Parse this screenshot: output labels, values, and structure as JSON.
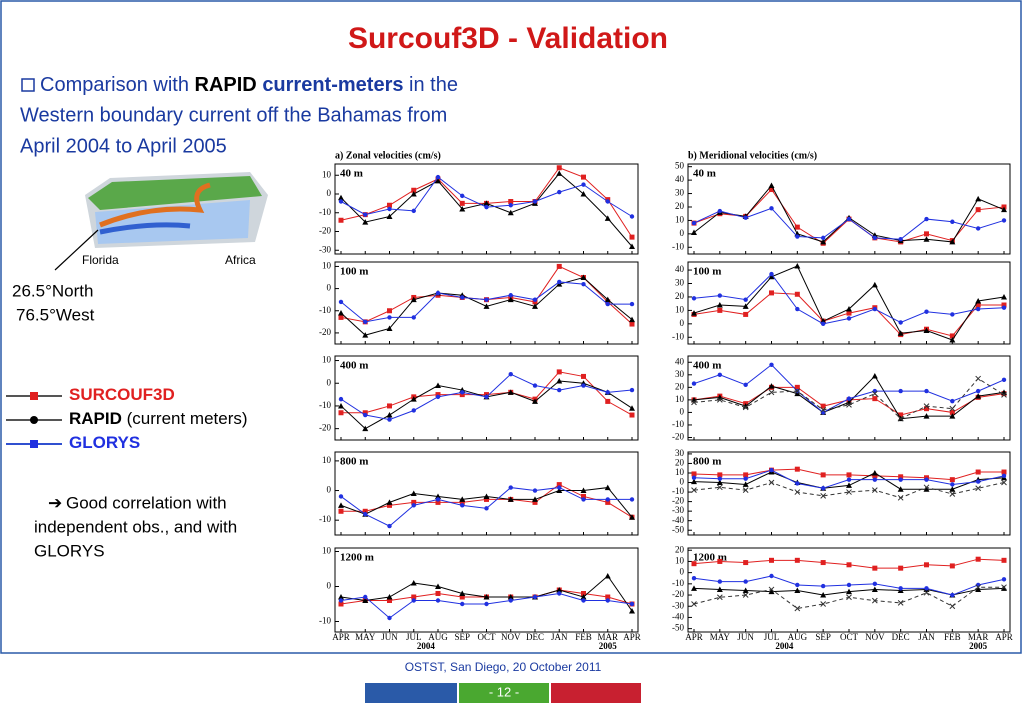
{
  "slide": {
    "title": "Surcouf3D - Validation",
    "intro": {
      "lead": "Comparison with",
      "bold1": "RAPID",
      "bold2": "current-meters",
      "rest": "in the",
      "line2": "Western boundary current off the Bahamas from",
      "line3": "April 2004 to April 2005"
    },
    "map_labels": {
      "left": "Florida",
      "right": "Africa",
      "lat": "26.5°North",
      "lon": "76.5°West"
    },
    "legend": [
      {
        "name": "SURCOUF3D",
        "color": "#e02020"
      },
      {
        "name": "RAPID",
        "detail": "(current meters)",
        "color": "#000000"
      },
      {
        "name": "GLORYS",
        "color": "#2030e0"
      }
    ],
    "comment": [
      "Good correlation with",
      "independent obs., and with",
      "GLORYS"
    ],
    "footer": {
      "venue": "OSTST, San Diego, 20 October 2011",
      "page": "- 12 -"
    }
  },
  "x_axis": {
    "categories": [
      "APR",
      "MAY",
      "JUN",
      "JUL",
      "AUG",
      "SEP",
      "OCT",
      "NOV",
      "DEC",
      "JAN",
      "FEB",
      "MAR",
      "APR"
    ],
    "years": [
      "2004",
      "2005"
    ]
  },
  "chart_data": [
    {
      "type": "line",
      "title": "a)  Zonal  velocities  (cm/s)",
      "label": "40 m",
      "ylim": [
        -32,
        16
      ],
      "yticks": [
        10,
        0,
        -10,
        -20,
        -30
      ],
      "series": [
        {
          "color": "#e02020",
          "values": [
            -14,
            -11,
            -6,
            2,
            8,
            -5,
            -5,
            -4,
            -4,
            14,
            9,
            -3,
            -23
          ]
        },
        {
          "color": "#000000",
          "values": [
            -2,
            -15,
            -12,
            0,
            7,
            -8,
            -5,
            -10,
            -5,
            11,
            0,
            -13,
            -28
          ]
        },
        {
          "color": "#2030e0",
          "values": [
            -4,
            -11,
            -8,
            -9,
            9,
            -1,
            -7,
            -6,
            -4,
            1,
            5,
            -4,
            -12
          ]
        }
      ]
    },
    {
      "type": "line",
      "label": "100 m",
      "ylim": [
        -25,
        12
      ],
      "yticks": [
        10,
        0,
        -10,
        -20
      ],
      "series": [
        {
          "color": "#e02020",
          "values": [
            -13,
            -15,
            -10,
            -4,
            -3,
            -4,
            -5,
            -4,
            -6,
            10,
            5,
            -6,
            -16
          ]
        },
        {
          "color": "#000000",
          "values": [
            -11,
            -21,
            -18,
            -5,
            -2,
            -3,
            -8,
            -5,
            -8,
            2,
            5,
            -5,
            -14
          ]
        },
        {
          "color": "#2030e0",
          "values": [
            -6,
            -15,
            -13,
            -13,
            -2,
            -4,
            -5,
            -3,
            -5,
            3,
            2,
            -7,
            -7
          ]
        }
      ]
    },
    {
      "type": "line",
      "label": "400 m",
      "ylim": [
        -25,
        12
      ],
      "yticks": [
        10,
        0,
        -10,
        -20
      ],
      "series": [
        {
          "color": "#e02020",
          "values": [
            -13,
            -13,
            -10,
            -6,
            -5,
            -5,
            -5,
            -4,
            -7,
            5,
            3,
            -8,
            -14
          ]
        },
        {
          "color": "#000000",
          "values": [
            -10,
            -20,
            -14,
            -7,
            -1,
            -3,
            -6,
            -4,
            -8,
            1,
            0,
            -4,
            -11
          ]
        },
        {
          "color": "#2030e0",
          "values": [
            -7,
            -14,
            -16,
            -12,
            -6,
            -4,
            -6,
            4,
            -1,
            -3,
            -1,
            -4,
            -3
          ]
        }
      ]
    },
    {
      "type": "line",
      "label": "800 m",
      "ylim": [
        -15,
        13
      ],
      "yticks": [
        10,
        0,
        -10
      ],
      "series": [
        {
          "color": "#e02020",
          "values": [
            -7,
            -7,
            -5,
            -4,
            -4,
            -4,
            -3,
            -3,
            -4,
            2,
            -2,
            -4,
            -9
          ]
        },
        {
          "color": "#000000",
          "values": [
            -5,
            -8,
            -4,
            -1,
            -2,
            -3,
            -2,
            -3,
            -3,
            0,
            0,
            1,
            -9
          ]
        },
        {
          "color": "#2030e0",
          "values": [
            -2,
            -8,
            -12,
            -5,
            -3,
            -5,
            -6,
            1,
            0,
            1,
            -3,
            -3,
            -3
          ]
        }
      ]
    },
    {
      "type": "line",
      "label": "1200 m",
      "ylim": [
        -13,
        11
      ],
      "yticks": [
        10,
        0,
        -10
      ],
      "series": [
        {
          "color": "#e02020",
          "values": [
            -5,
            -4,
            -4,
            -3,
            -2,
            -3,
            -3,
            -3,
            -3,
            -1,
            -2,
            -3,
            -5
          ]
        },
        {
          "color": "#000000",
          "values": [
            -3,
            -4,
            -3,
            1,
            0,
            -2,
            -3,
            -3,
            -3,
            -1,
            -3,
            3,
            -7
          ]
        },
        {
          "color": "#2030e0",
          "values": [
            -4,
            -3,
            -9,
            -4,
            -4,
            -5,
            -5,
            -4,
            -3,
            -2,
            -4,
            -4,
            -5
          ]
        }
      ]
    },
    {
      "type": "line",
      "title": "b)  Meridional  velocities  (cm/s)",
      "label": "40 m",
      "ylim": [
        -15,
        52
      ],
      "yticks": [
        50,
        40,
        30,
        20,
        10,
        0,
        -10
      ],
      "series": [
        {
          "color": "#e02020",
          "values": [
            8,
            15,
            13,
            33,
            5,
            -7,
            11,
            -3,
            -6,
            0,
            -5,
            18,
            20
          ]
        },
        {
          "color": "#000000",
          "values": [
            1,
            16,
            13,
            36,
            0,
            -6,
            12,
            -1,
            -5,
            -4,
            -6,
            26,
            18
          ]
        },
        {
          "color": "#2030e0",
          "values": [
            8,
            17,
            12,
            19,
            -2,
            -3,
            11,
            -3,
            -4,
            11,
            9,
            4,
            10
          ]
        }
      ]
    },
    {
      "type": "line",
      "label": "100 m",
      "ylim": [
        -15,
        46
      ],
      "yticks": [
        40,
        30,
        20,
        10,
        0,
        -10
      ],
      "series": [
        {
          "color": "#e02020",
          "values": [
            7,
            10,
            7,
            23,
            22,
            2,
            8,
            12,
            -8,
            -4,
            -9,
            14,
            14
          ]
        },
        {
          "color": "#000000",
          "values": [
            8,
            14,
            13,
            35,
            43,
            2,
            11,
            29,
            -7,
            -5,
            -12,
            17,
            20
          ]
        },
        {
          "color": "#2030e0",
          "values": [
            19,
            21,
            18,
            37,
            11,
            0,
            4,
            11,
            1,
            9,
            7,
            11,
            12
          ]
        }
      ]
    },
    {
      "type": "line",
      "label": "400 m",
      "ylim": [
        -22,
        45
      ],
      "yticks": [
        40,
        30,
        20,
        10,
        0,
        -10,
        -20
      ],
      "series": [
        {
          "color": "#e02020",
          "values": [
            10,
            13,
            7,
            20,
            20,
            5,
            10,
            11,
            -2,
            3,
            0,
            12,
            15
          ]
        },
        {
          "color": "#000000",
          "values": [
            10,
            12,
            5,
            21,
            15,
            0,
            8,
            29,
            -5,
            -3,
            -3,
            13,
            16
          ]
        },
        {
          "color": "#2030e0",
          "values": [
            23,
            30,
            22,
            38,
            17,
            0,
            11,
            17,
            17,
            17,
            9,
            17,
            26
          ]
        },
        {
          "color": "#333333",
          "dash": true,
          "values": [
            8,
            10,
            4,
            16,
            17,
            2,
            6,
            15,
            -5,
            5,
            3,
            27,
            14
          ]
        }
      ]
    },
    {
      "type": "line",
      "label": "800 m",
      "ylim": [
        -55,
        32
      ],
      "yticks": [
        30,
        20,
        10,
        0,
        -10,
        -20,
        -30,
        -40,
        -50
      ],
      "series": [
        {
          "color": "#e02020",
          "values": [
            9,
            8,
            8,
            13,
            14,
            8,
            8,
            7,
            6,
            5,
            3,
            11,
            11
          ]
        },
        {
          "color": "#000000",
          "values": [
            1,
            0,
            -2,
            11,
            0,
            -6,
            -3,
            10,
            -7,
            -7,
            -7,
            3,
            5
          ]
        },
        {
          "color": "#2030e0",
          "values": [
            5,
            4,
            4,
            13,
            -1,
            -6,
            3,
            3,
            3,
            3,
            -2,
            1,
            7
          ]
        },
        {
          "color": "#333333",
          "dash": true,
          "values": [
            -8,
            -5,
            -8,
            0,
            -10,
            -14,
            -10,
            -8,
            -16,
            -5,
            -12,
            -6,
            0
          ]
        }
      ]
    },
    {
      "type": "line",
      "label": "1200 m",
      "ylim": [
        -53,
        22
      ],
      "yticks": [
        20,
        10,
        0,
        -10,
        -20,
        -30,
        -40,
        -50
      ],
      "series": [
        {
          "color": "#e02020",
          "values": [
            8,
            10,
            9,
            11,
            11,
            9,
            7,
            4,
            4,
            7,
            6,
            12,
            11
          ]
        },
        {
          "color": "#000000",
          "values": [
            -14,
            -15,
            -16,
            -17,
            -16,
            -20,
            -17,
            -15,
            -16,
            -15,
            -20,
            -15,
            -14
          ]
        },
        {
          "color": "#2030e0",
          "values": [
            -5,
            -8,
            -8,
            -3,
            -11,
            -12,
            -11,
            -10,
            -14,
            -14,
            -20,
            -11,
            -6
          ]
        },
        {
          "color": "#333333",
          "dash": true,
          "values": [
            -28,
            -22,
            -20,
            -15,
            -32,
            -28,
            -22,
            -25,
            -27,
            -18,
            -30,
            -13,
            -13
          ]
        }
      ]
    }
  ]
}
